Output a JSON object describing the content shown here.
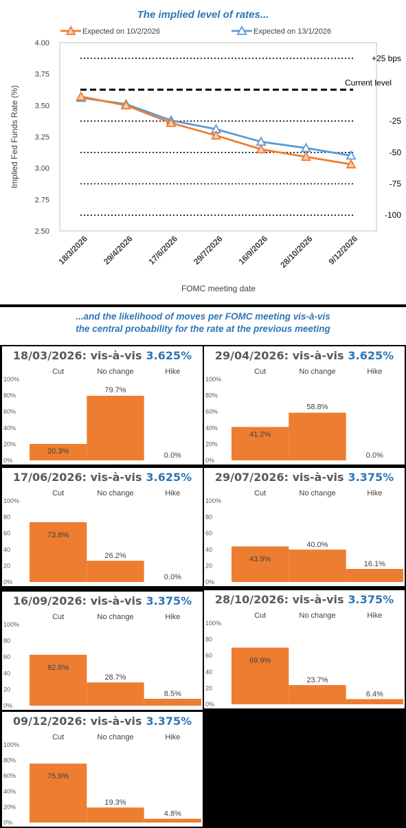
{
  "colors": {
    "accent": "#2E75B6",
    "orange": "#ED7D31",
    "blue_line": "#5B9BD5",
    "text": "#595959"
  },
  "chart_data": [
    {
      "type": "line",
      "title": "The implied level of rates...",
      "xlabel": "FOMC meeting date",
      "ylabel": "Implied Fed Funds Rate (%)",
      "categories": [
        "18/3/2026",
        "29/4/2026",
        "17/6/2026",
        "29/7/2026",
        "16/9/2026",
        "28/10/2026",
        "9/12/2026"
      ],
      "ylim": [
        2.5,
        4.0
      ],
      "yticks": [
        "4.00",
        "3.75",
        "3.50",
        "3.25",
        "3.00",
        "2.75",
        "2.50"
      ],
      "legend_position": "top",
      "series": [
        {
          "name": "Expected on 10/2/2026",
          "color": "#ED7D31",
          "values": [
            3.57,
            3.5,
            3.36,
            3.26,
            3.15,
            3.09,
            3.03
          ]
        },
        {
          "name": "Expected on 13/1/2026",
          "color": "#5B9BD5",
          "values": [
            3.56,
            3.51,
            3.38,
            3.31,
            3.21,
            3.16,
            3.1
          ]
        }
      ],
      "reference_lines": [
        {
          "label": "+25 bps",
          "value": 3.875,
          "style": "dotted"
        },
        {
          "label": "Current level",
          "value": 3.625,
          "style": "dashed"
        },
        {
          "label": "-25",
          "value": 3.375,
          "style": "dotted"
        },
        {
          "label": "-50",
          "value": 3.125,
          "style": "dotted"
        },
        {
          "label": "-75",
          "value": 2.875,
          "style": "dotted"
        },
        {
          "label": "-100",
          "value": 2.625,
          "style": "dotted"
        }
      ]
    },
    {
      "type": "bar",
      "title": "18/03/2026: vis-à-vis",
      "rate": "3.625%",
      "categories": [
        "Cut",
        "No change",
        "Hike"
      ],
      "values": [
        20.3,
        79.7,
        0.0
      ],
      "labels": [
        "20.3%",
        "79.7%",
        "0.0%"
      ],
      "ylim": [
        0,
        100
      ],
      "yticks": [
        "100%",
        "80%",
        "60%",
        "40%",
        "20%",
        "0%"
      ]
    },
    {
      "type": "bar",
      "title": "29/04/2026: vis-à-vis",
      "rate": "3.625%",
      "categories": [
        "Cut",
        "No change",
        "Hike"
      ],
      "values": [
        41.2,
        58.8,
        0.0
      ],
      "labels": [
        "41.2%",
        "58.8%",
        "0.0%"
      ],
      "ylim": [
        0,
        100
      ],
      "yticks": [
        "100%",
        "80%",
        "60%",
        "40%",
        "20%",
        "0%"
      ]
    },
    {
      "type": "bar",
      "title": "17/06/2026: vis-à-vis",
      "rate": "3.625%",
      "categories": [
        "Cut",
        "No change",
        "Hike"
      ],
      "values": [
        73.8,
        26.2,
        0.0
      ],
      "labels": [
        "73.8%",
        "26.2%",
        "0.0%"
      ],
      "ylim": [
        0,
        100
      ],
      "yticks": [
        "100%",
        "80",
        "60",
        "40",
        "20",
        "0%"
      ]
    },
    {
      "type": "bar",
      "title": "29/07/2026: vis-à-vis",
      "rate": "3.375%",
      "categories": [
        "Cut",
        "No change",
        "Hike"
      ],
      "values": [
        43.9,
        40.0,
        16.1
      ],
      "labels": [
        "43.9%",
        "40.0%",
        "16.1%"
      ],
      "ylim": [
        0,
        100
      ],
      "yticks": [
        "100%",
        "80",
        "60",
        "40",
        "20",
        "0%"
      ]
    },
    {
      "type": "bar",
      "title": "16/09/2026: vis-à-vis",
      "rate": "3.375%",
      "categories": [
        "Cut",
        "No change",
        "Hike"
      ],
      "values": [
        62.8,
        28.7,
        8.5
      ],
      "labels": [
        "62.8%",
        "28.7%",
        "8.5%"
      ],
      "ylim": [
        0,
        100
      ],
      "yticks": [
        "100%",
        "80",
        "60",
        "40",
        "20",
        "0%"
      ]
    },
    {
      "type": "bar",
      "title": "28/10/2026: vis-à-vis",
      "rate": "3.375%",
      "categories": [
        "Cut",
        "No change",
        "Hike"
      ],
      "values": [
        69.9,
        23.7,
        6.4
      ],
      "labels": [
        "69.9%",
        "23.7%",
        "6.4%"
      ],
      "ylim": [
        0,
        100
      ],
      "yticks": [
        "100%",
        "80",
        "60",
        "40",
        "20",
        "0%"
      ]
    },
    {
      "type": "bar",
      "title": "09/12/2026: vis-à-vis",
      "rate": "3.375%",
      "categories": [
        "Cut",
        "No change",
        "Hike"
      ],
      "values": [
        75.9,
        19.3,
        4.8
      ],
      "labels": [
        "75.9%",
        "19.3%",
        "4.8%"
      ],
      "ylim": [
        0,
        100
      ],
      "yticks": [
        "100%",
        "80%",
        "60%",
        "40%",
        "20%",
        "0%"
      ]
    }
  ],
  "section2": {
    "line1": "...and the likelihood of moves per FOMC meeting vis-à-vis",
    "line2": "the central probability for the rate at the previous meeting"
  }
}
